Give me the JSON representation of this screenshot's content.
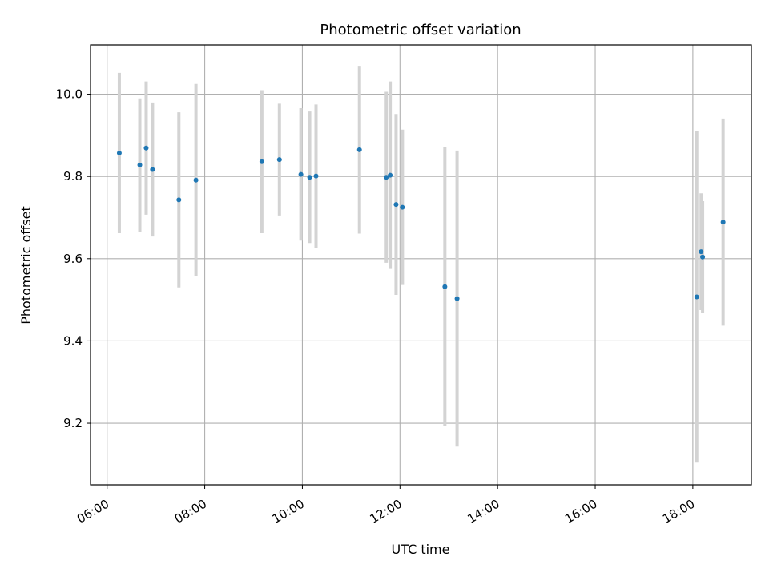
{
  "chart_data": {
    "type": "scatter",
    "title": "Photometric offset variation",
    "xlabel": "UTC time",
    "ylabel": "Photometric offset",
    "x_unit": "hours (UTC)",
    "xlim": [
      5.66,
      19.2
    ],
    "ylim": [
      9.05,
      10.12
    ],
    "x_ticks": [
      {
        "value": 6,
        "label": "06:00"
      },
      {
        "value": 8,
        "label": "08:00"
      },
      {
        "value": 10,
        "label": "10:00"
      },
      {
        "value": 12,
        "label": "12:00"
      },
      {
        "value": 14,
        "label": "14:00"
      },
      {
        "value": 16,
        "label": "16:00"
      },
      {
        "value": 18,
        "label": "18:00"
      }
    ],
    "y_ticks": [
      {
        "value": 9.2,
        "label": "9.2"
      },
      {
        "value": 9.4,
        "label": "9.4"
      },
      {
        "value": 9.6,
        "label": "9.6"
      },
      {
        "value": 9.8,
        "label": "9.8"
      },
      {
        "value": 10.0,
        "label": "10.0"
      }
    ],
    "grid": true,
    "colors": {
      "points": "#1f77b4",
      "errorbars": "#d3d3d3",
      "grid": "#b0b0b0"
    },
    "points": [
      {
        "x": 6.25,
        "y": 9.857,
        "err": 0.195
      },
      {
        "x": 6.67,
        "y": 9.828,
        "err": 0.162
      },
      {
        "x": 6.8,
        "y": 9.869,
        "err": 0.162
      },
      {
        "x": 6.93,
        "y": 9.817,
        "err": 0.163
      },
      {
        "x": 7.47,
        "y": 9.743,
        "err": 0.213
      },
      {
        "x": 7.82,
        "y": 9.791,
        "err": 0.234
      },
      {
        "x": 9.17,
        "y": 9.836,
        "err": 0.174
      },
      {
        "x": 9.53,
        "y": 9.841,
        "err": 0.136
      },
      {
        "x": 9.97,
        "y": 9.805,
        "err": 0.161
      },
      {
        "x": 10.15,
        "y": 9.798,
        "err": 0.16
      },
      {
        "x": 10.28,
        "y": 9.801,
        "err": 0.174
      },
      {
        "x": 11.17,
        "y": 9.865,
        "err": 0.204
      },
      {
        "x": 11.72,
        "y": 9.798,
        "err": 0.208
      },
      {
        "x": 11.8,
        "y": 9.803,
        "err": 0.228
      },
      {
        "x": 11.92,
        "y": 9.732,
        "err": 0.22
      },
      {
        "x": 12.05,
        "y": 9.725,
        "err": 0.189
      },
      {
        "x": 12.92,
        "y": 9.532,
        "err": 0.339
      },
      {
        "x": 13.17,
        "y": 9.503,
        "err": 0.36
      },
      {
        "x": 18.08,
        "y": 9.507,
        "err": 0.403
      },
      {
        "x": 18.17,
        "y": 9.617,
        "err": 0.142
      },
      {
        "x": 18.2,
        "y": 9.604,
        "err": 0.136
      },
      {
        "x": 18.62,
        "y": 9.689,
        "err": 0.252
      }
    ]
  }
}
